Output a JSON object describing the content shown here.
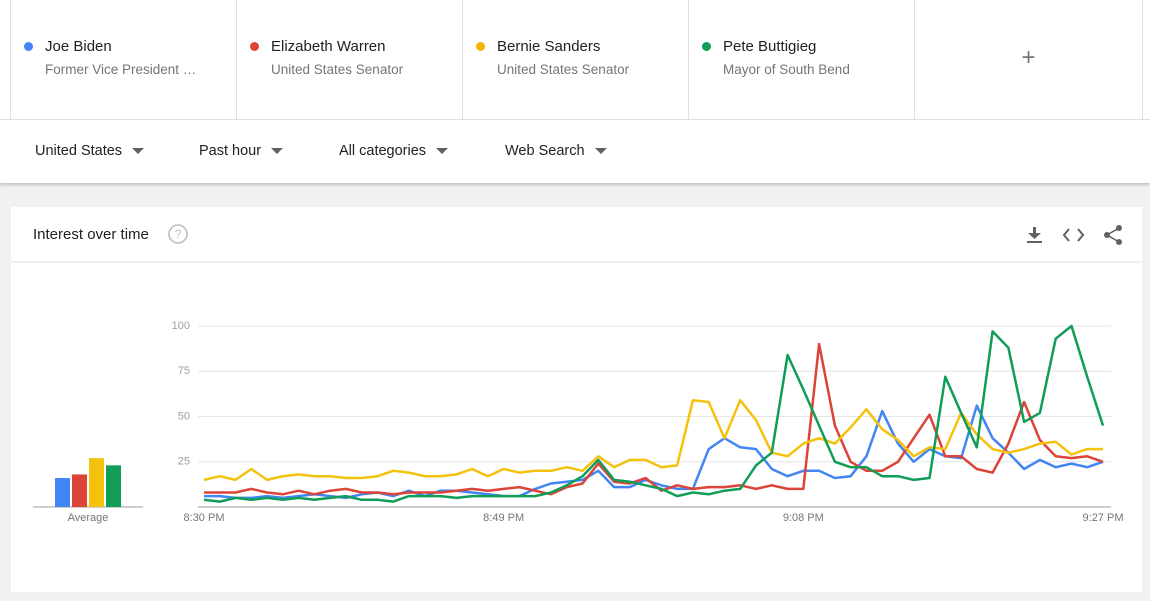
{
  "terms": [
    {
      "description": "Former Vice President …"
    },
    {
      "description": "United States Senator"
    },
    {
      "description": "United States Senator"
    },
    {
      "description": "Mayor of South Bend"
    }
  ],
  "add_term": "+",
  "filters": [
    "United States",
    "Past hour",
    "All categories",
    "Web Search"
  ],
  "card_title": "Interest over time",
  "chart_data": [
    {
      "type": "line",
      "categories": [
        "8:30 PM",
        null,
        null,
        null,
        null,
        null,
        null,
        null,
        null,
        null,
        null,
        null,
        null,
        null,
        null,
        null,
        null,
        null,
        null,
        "8:49 PM",
        null,
        null,
        null,
        null,
        null,
        null,
        null,
        null,
        null,
        null,
        null,
        null,
        null,
        null,
        null,
        null,
        null,
        null,
        "9:08 PM",
        null,
        null,
        null,
        null,
        null,
        null,
        null,
        null,
        null,
        null,
        null,
        null,
        null,
        null,
        null,
        null,
        null,
        null,
        "9:27 PM"
      ],
      "ylim": [
        0,
        100
      ],
      "yticks": [
        25,
        50,
        75,
        100
      ],
      "grid": true,
      "series": [
        {
          "name": "Joe Biden",
          "color": "#4285f4",
          "values": [
            6,
            6,
            5,
            5,
            6,
            5,
            6,
            7,
            6,
            5,
            7,
            8,
            6,
            9,
            6,
            9,
            9,
            8,
            7,
            6,
            6,
            10,
            13,
            14,
            15,
            20,
            11,
            11,
            15,
            12,
            10,
            10,
            32,
            38,
            33,
            32,
            21,
            17,
            20,
            20,
            16,
            17,
            28,
            53,
            35,
            25,
            32,
            28,
            27,
            56,
            38,
            30,
            21,
            26,
            22,
            24,
            22,
            25
          ]
        },
        {
          "name": "Elizabeth Warren",
          "color": "#db4437",
          "values": [
            8,
            8,
            8,
            10,
            8,
            7,
            9,
            7,
            9,
            10,
            8,
            8,
            7,
            8,
            8,
            8,
            9,
            10,
            9,
            10,
            11,
            9,
            7,
            11,
            13,
            24,
            14,
            13,
            16,
            9,
            12,
            10,
            11,
            11,
            12,
            10,
            12,
            10,
            10,
            90,
            45,
            25,
            20,
            20,
            25,
            38,
            51,
            28,
            28,
            21,
            19,
            35,
            58,
            37,
            28,
            27,
            28,
            25
          ]
        },
        {
          "name": "Bernie Sanders",
          "color": "#f4c20d",
          "values": [
            15,
            17,
            15,
            21,
            15,
            17,
            18,
            17,
            17,
            16,
            16,
            17,
            20,
            19,
            17,
            17,
            18,
            21,
            17,
            21,
            19,
            20,
            20,
            22,
            20,
            28,
            22,
            26,
            26,
            22,
            23,
            59,
            58,
            38,
            59,
            48,
            30,
            28,
            35,
            38,
            35,
            44,
            54,
            43,
            37,
            28,
            33,
            32,
            52,
            40,
            32,
            30,
            32,
            35,
            36,
            29,
            32,
            32
          ]
        },
        {
          "name": "Pete Buttigieg",
          "color": "#0f9d58",
          "values": [
            4,
            3,
            5,
            4,
            5,
            4,
            5,
            4,
            5,
            6,
            4,
            4,
            3,
            6,
            6,
            6,
            5,
            6,
            6,
            6,
            6,
            6,
            8,
            12,
            17,
            26,
            15,
            14,
            12,
            10,
            6,
            8,
            7,
            9,
            10,
            23,
            30,
            84,
            65,
            45,
            25,
            22,
            22,
            17,
            17,
            15,
            16,
            72,
            52,
            33,
            97,
            88,
            47,
            52,
            93,
            100,
            72,
            45
          ]
        }
      ]
    },
    {
      "type": "bar",
      "label": "Average",
      "values": [
        16,
        18,
        27,
        23
      ],
      "colors": [
        "#4285f4",
        "#db4437",
        "#f4c20d",
        "#0f9d58"
      ],
      "ylim": [
        0,
        100
      ]
    }
  ]
}
